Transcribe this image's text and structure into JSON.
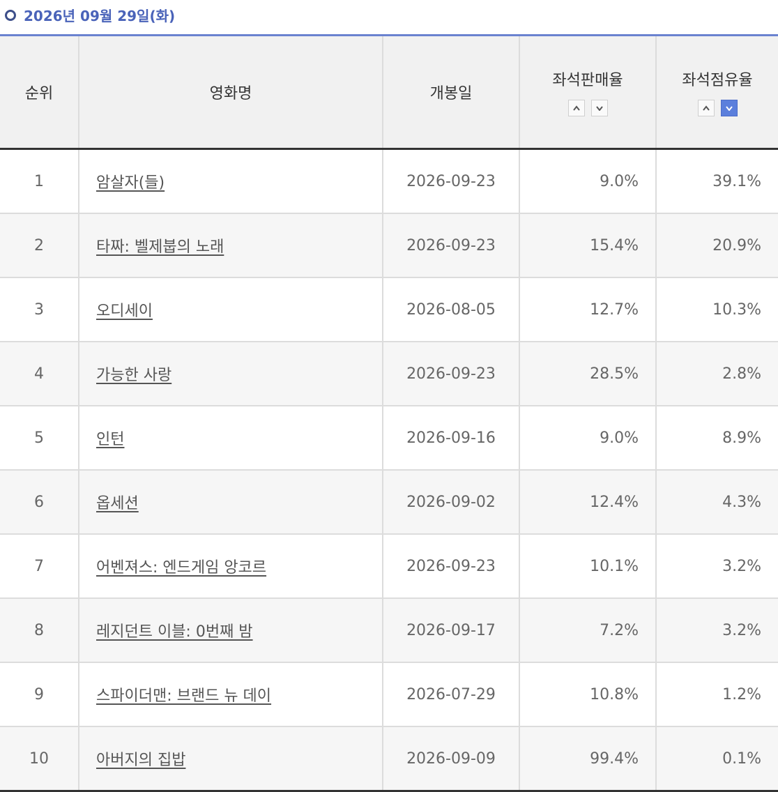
{
  "header": {
    "title": "2026년 09월 29일(화)"
  },
  "table": {
    "columns": [
      "순위",
      "영화명",
      "개봉일",
      "좌석판매율",
      "좌석점유율"
    ],
    "rows": [
      [
        "1",
        "암살자(들)",
        "2026-09-23",
        "9.0%",
        "39.1%"
      ],
      [
        "2",
        "타짜: 벨제붑의 노래",
        "2026-09-23",
        "15.4%",
        "20.9%"
      ],
      [
        "3",
        "오디세이",
        "2026-08-05",
        "12.7%",
        "10.3%"
      ],
      [
        "4",
        "가능한 사랑",
        "2026-09-23",
        "28.5%",
        "2.8%"
      ],
      [
        "5",
        "인턴",
        "2026-09-16",
        "9.0%",
        "8.9%"
      ],
      [
        "6",
        "옵세션",
        "2026-09-02",
        "12.4%",
        "4.3%"
      ],
      [
        "7",
        "어벤져스: 엔드게임 앙코르",
        "2026-09-23",
        "10.1%",
        "3.2%"
      ],
      [
        "8",
        "레지던트 이블: 0번째 밤",
        "2026-09-17",
        "7.2%",
        "3.2%"
      ],
      [
        "9",
        "스파이더맨: 브랜드 뉴 데이",
        "2026-07-29",
        "10.8%",
        "1.2%"
      ],
      [
        "10",
        "아버지의 집밥",
        "2026-09-09",
        "99.4%",
        "0.1%"
      ]
    ]
  }
}
